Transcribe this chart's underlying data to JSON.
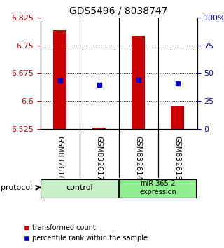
{
  "title": "GDS5496 / 8038747",
  "samples": [
    "GSM832616",
    "GSM832617",
    "GSM832614",
    "GSM832615"
  ],
  "groups": [
    {
      "label": "control",
      "indices": [
        0,
        1
      ],
      "color": "#c8f0c8"
    },
    {
      "label": "miR-365-2\nexpression",
      "indices": [
        2,
        3
      ],
      "color": "#90ee90"
    }
  ],
  "bar_bottom": 6.525,
  "bar_tops": [
    6.79,
    6.528,
    6.775,
    6.585
  ],
  "blue_values": [
    6.655,
    6.643,
    6.656,
    6.648
  ],
  "ylim": [
    6.525,
    6.825
  ],
  "yticks_left": [
    6.525,
    6.6,
    6.675,
    6.75,
    6.825
  ],
  "yticks_right": [
    0,
    25,
    50,
    75,
    100
  ],
  "bar_color": "#cc0000",
  "blue_color": "#0000cc",
  "grid_color": "#000000",
  "bg_plot": "#ffffff",
  "bg_sample": "#c0c0c0",
  "bg_control": "#c8f0c8",
  "bg_expression": "#90ee90",
  "left_label_color": "#cc0000",
  "right_label_color": "#0000cc",
  "protocol_label": "protocol",
  "legend_bar_label": "transformed count",
  "legend_blue_label": "percentile rank within the sample"
}
